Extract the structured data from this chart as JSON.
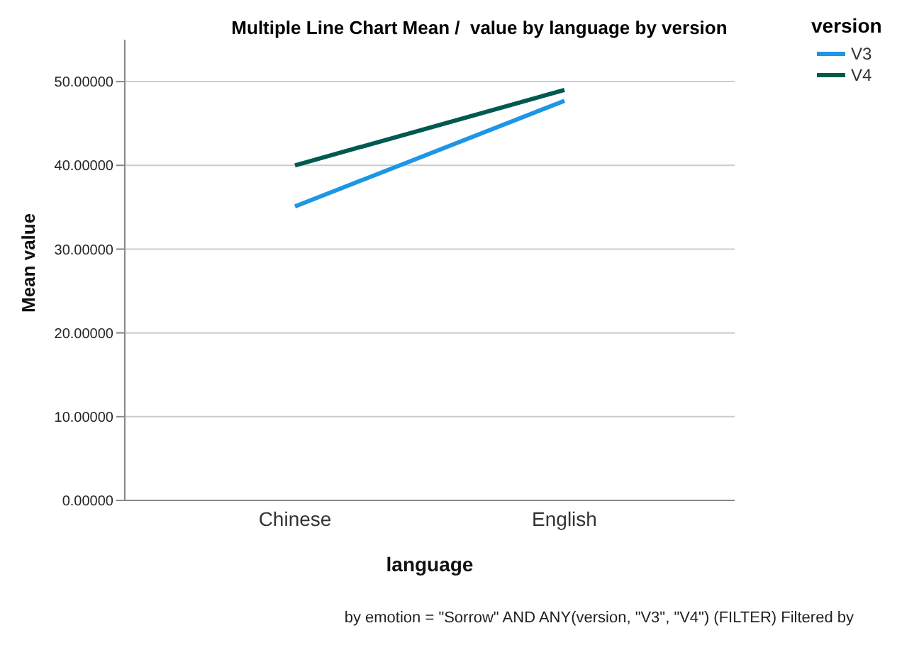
{
  "chart_data": {
    "type": "line",
    "title": "Multiple Line Chart Mean /  value by language by version",
    "xlabel": "language",
    "ylabel": "Mean value",
    "legend_title": "version",
    "annotations": [
      "by emotion = \"Sorrow\" AND ANY(version, \"V3\", \"V4\") (FILTER) Filtered by"
    ],
    "categories": [
      "Chinese",
      "English"
    ],
    "series": [
      {
        "name": "V3",
        "color": "#1e96e6",
        "values": [
          35.1,
          47.7
        ]
      },
      {
        "name": "V4",
        "color": "#005a50",
        "values": [
          40.0,
          49.0
        ]
      }
    ],
    "ylim": [
      0,
      55
    ],
    "yticks": [
      {
        "value": 0,
        "label": "0.00000"
      },
      {
        "value": 10,
        "label": "10.00000"
      },
      {
        "value": 20,
        "label": "20.00000"
      },
      {
        "value": 30,
        "label": "30.00000"
      },
      {
        "value": 40,
        "label": "40.00000"
      },
      {
        "value": 50,
        "label": "50.00000"
      }
    ],
    "grid": "y",
    "legend": "top right",
    "marker": "none",
    "line_style": "solid"
  }
}
